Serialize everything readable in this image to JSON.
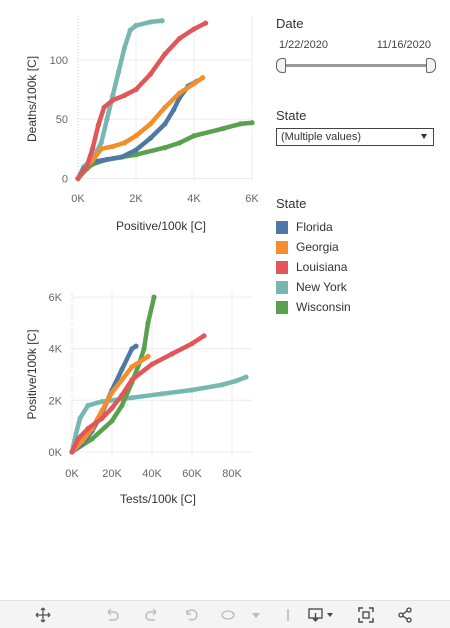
{
  "colors": {
    "Florida": "#4e79a7",
    "Georgia": "#f28e2b",
    "Louisiana": "#e15759",
    "New York": "#76b7b2",
    "Wisconsin": "#59a14f"
  },
  "filters": {
    "date": {
      "title": "Date",
      "start": "1/22/2020",
      "end": "11/16/2020"
    },
    "state": {
      "title": "State",
      "value": "(Multiple values)"
    }
  },
  "legend": {
    "title": "State",
    "items": [
      "Florida",
      "Georgia",
      "Louisiana",
      "New York",
      "Wisconsin"
    ]
  },
  "toolbar": {
    "icons": [
      "move-icon",
      "undo-icon",
      "redo-icon",
      "revert-icon",
      "refresh-icon",
      "pause-dropdown-icon",
      "download-icon",
      "fullscreen-icon",
      "share-icon"
    ]
  },
  "chart_data": [
    {
      "type": "scatter",
      "xlabel": "Positive/100k [C]",
      "ylabel": "Deaths/100k [C]",
      "xlim": [
        0,
        6000
      ],
      "ylim": [
        -3,
        137
      ],
      "xticks": [
        0,
        2000,
        4000,
        6000
      ],
      "xticklabels": [
        "0K",
        "2K",
        "4K",
        "6K"
      ],
      "yticks": [
        0,
        50,
        100
      ],
      "yticklabels": [
        "0",
        "50",
        "100"
      ],
      "grid": true,
      "series": [
        {
          "name": "Florida",
          "points": [
            [
              0,
              0
            ],
            [
              200,
              8
            ],
            [
              500,
              14
            ],
            [
              1000,
              16
            ],
            [
              1500,
              18
            ],
            [
              2000,
              24
            ],
            [
              2500,
              34
            ],
            [
              3000,
              46
            ],
            [
              3300,
              58
            ],
            [
              3500,
              68
            ],
            [
              3800,
              78
            ],
            [
              4100,
              82
            ]
          ]
        },
        {
          "name": "Georgia",
          "points": [
            [
              0,
              0
            ],
            [
              300,
              10
            ],
            [
              500,
              15
            ],
            [
              800,
              25
            ],
            [
              1200,
              27
            ],
            [
              1600,
              30
            ],
            [
              2000,
              36
            ],
            [
              2500,
              46
            ],
            [
              3000,
              60
            ],
            [
              3500,
              72
            ],
            [
              4000,
              80
            ],
            [
              4300,
              85
            ]
          ]
        },
        {
          "name": "Louisiana",
          "points": [
            [
              0,
              0
            ],
            [
              300,
              10
            ],
            [
              500,
              25
            ],
            [
              700,
              45
            ],
            [
              900,
              60
            ],
            [
              1200,
              66
            ],
            [
              1600,
              70
            ],
            [
              2000,
              75
            ],
            [
              2500,
              88
            ],
            [
              3000,
              105
            ],
            [
              3500,
              118
            ],
            [
              4000,
              126
            ],
            [
              4400,
              131
            ]
          ]
        },
        {
          "name": "New York",
          "points": [
            [
              0,
              0
            ],
            [
              200,
              10
            ],
            [
              500,
              16
            ],
            [
              800,
              30
            ],
            [
              1000,
              50
            ],
            [
              1200,
              70
            ],
            [
              1400,
              90
            ],
            [
              1600,
              110
            ],
            [
              1800,
              125
            ],
            [
              2000,
              129
            ],
            [
              2500,
              132
            ],
            [
              2900,
              133
            ]
          ]
        },
        {
          "name": "Wisconsin",
          "points": [
            [
              0,
              0
            ],
            [
              300,
              8
            ],
            [
              500,
              12
            ],
            [
              1000,
              16
            ],
            [
              2000,
              20
            ],
            [
              3000,
              26
            ],
            [
              3500,
              30
            ],
            [
              4000,
              36
            ],
            [
              5000,
              42
            ],
            [
              5600,
              46
            ],
            [
              6000,
              47
            ]
          ]
        }
      ]
    },
    {
      "type": "scatter",
      "xlabel": "Tests/100k [C]",
      "ylabel": "Positive/100k [C]",
      "xlim": [
        0,
        90000
      ],
      "ylim": [
        -200,
        6200
      ],
      "xticks": [
        0,
        20000,
        40000,
        60000,
        80000
      ],
      "xticklabels": [
        "0K",
        "20K",
        "40K",
        "60K",
        "80K"
      ],
      "yticks": [
        0,
        2000,
        4000,
        6000
      ],
      "yticklabels": [
        "0K",
        "2K",
        "4K",
        "6K"
      ],
      "grid": true,
      "series": [
        {
          "name": "Florida",
          "points": [
            [
              0,
              0
            ],
            [
              5000,
              300
            ],
            [
              10000,
              800
            ],
            [
              15000,
              1500
            ],
            [
              20000,
              2400
            ],
            [
              25000,
              3200
            ],
            [
              30000,
              4000
            ],
            [
              32000,
              4100
            ]
          ]
        },
        {
          "name": "Georgia",
          "points": [
            [
              0,
              0
            ],
            [
              5000,
              400
            ],
            [
              10000,
              900
            ],
            [
              15000,
              1600
            ],
            [
              20000,
              2300
            ],
            [
              25000,
              2800
            ],
            [
              30000,
              3300
            ],
            [
              38000,
              3700
            ]
          ]
        },
        {
          "name": "Louisiana",
          "points": [
            [
              0,
              0
            ],
            [
              3000,
              500
            ],
            [
              8000,
              900
            ],
            [
              15000,
              1300
            ],
            [
              20000,
              1700
            ],
            [
              25000,
              2200
            ],
            [
              30000,
              2800
            ],
            [
              40000,
              3400
            ],
            [
              50000,
              3800
            ],
            [
              60000,
              4200
            ],
            [
              66000,
              4500
            ]
          ]
        },
        {
          "name": "New York",
          "points": [
            [
              0,
              0
            ],
            [
              2000,
              700
            ],
            [
              4000,
              1300
            ],
            [
              8000,
              1800
            ],
            [
              15000,
              1950
            ],
            [
              30000,
              2100
            ],
            [
              45000,
              2250
            ],
            [
              60000,
              2400
            ],
            [
              75000,
              2600
            ],
            [
              82000,
              2750
            ],
            [
              87000,
              2900
            ]
          ]
        },
        {
          "name": "Wisconsin",
          "points": [
            [
              0,
              0
            ],
            [
              10000,
              500
            ],
            [
              20000,
              1200
            ],
            [
              25000,
              1800
            ],
            [
              30000,
              2700
            ],
            [
              34000,
              3500
            ],
            [
              36000,
              4000
            ],
            [
              38000,
              5000
            ],
            [
              41000,
              6000
            ]
          ]
        }
      ]
    }
  ]
}
